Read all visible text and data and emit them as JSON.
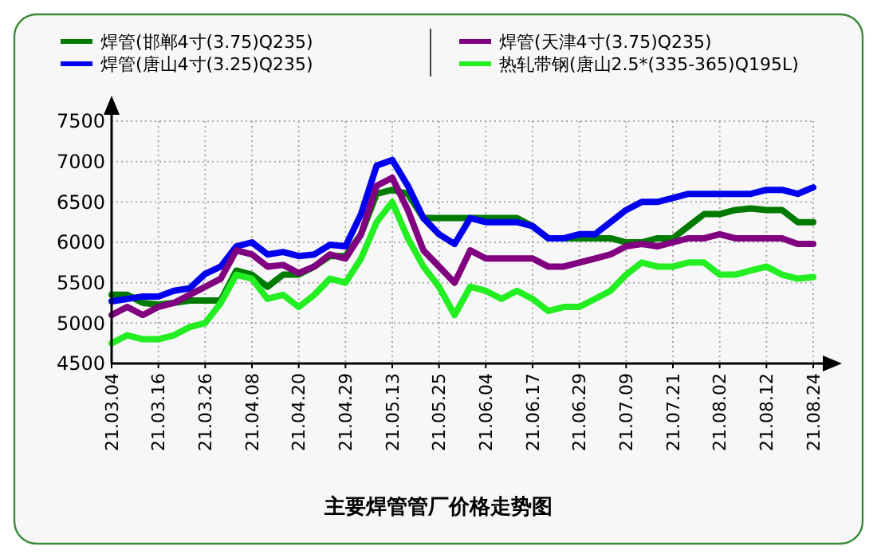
{
  "chart_data": {
    "type": "line",
    "title": "主要焊管管厂价格走势图",
    "categories": [
      "21.03.04",
      null,
      null,
      "21.03.16",
      null,
      null,
      "21.03.26",
      null,
      null,
      "21.04.08",
      null,
      null,
      "21.04.20",
      null,
      null,
      "21.04.29",
      null,
      null,
      "21.05.13",
      null,
      null,
      "21.05.25",
      null,
      null,
      "21.06.04",
      null,
      null,
      "21.06.17",
      null,
      null,
      "21.06.29",
      null,
      null,
      "21.07.09",
      null,
      null,
      "21.07.21",
      null,
      null,
      "21.08.02",
      null,
      null,
      "21.08.12",
      null,
      null,
      "21.08.24"
    ],
    "series": [
      {
        "name": "焊管(邯郸4寸(3.75)Q235)",
        "color": "#007a00",
        "values": [
          5350,
          5350,
          5250,
          5230,
          5250,
          5280,
          5280,
          5280,
          5650,
          5600,
          5450,
          5600,
          5600,
          5700,
          5830,
          5830,
          6100,
          6600,
          6650,
          6600,
          6300,
          6300,
          6300,
          6300,
          6300,
          6300,
          6300,
          6200,
          6050,
          6050,
          6050,
          6050,
          6050,
          6000,
          6000,
          6050,
          6050,
          6200,
          6350,
          6350,
          6400,
          6420,
          6400,
          6400,
          6250,
          6250
        ]
      },
      {
        "name": "焊管(唐山4寸(3.25)Q235)",
        "color": "#0000ee",
        "values": [
          5270,
          5300,
          5330,
          5330,
          5400,
          5430,
          5610,
          5700,
          5950,
          6000,
          5850,
          5880,
          5830,
          5850,
          5970,
          5950,
          6350,
          6950,
          7020,
          6700,
          6300,
          6100,
          5980,
          6300,
          6250,
          6250,
          6250,
          6200,
          6050,
          6050,
          6100,
          6100,
          6250,
          6400,
          6500,
          6500,
          6550,
          6600,
          6600,
          6600,
          6600,
          6600,
          6650,
          6650,
          6600,
          6680
        ]
      },
      {
        "name": "焊管(天津4寸(3.75)Q235)",
        "color": "#800080",
        "values": [
          5100,
          5200,
          5100,
          5200,
          5250,
          5350,
          5450,
          5550,
          5900,
          5850,
          5700,
          5720,
          5620,
          5700,
          5850,
          5800,
          6100,
          6700,
          6800,
          6400,
          5900,
          5700,
          5500,
          5900,
          5800,
          5800,
          5800,
          5800,
          5700,
          5700,
          5750,
          5800,
          5850,
          5950,
          5980,
          5950,
          6000,
          6050,
          6050,
          6100,
          6050,
          6050,
          6050,
          6050,
          5980,
          5980
        ]
      },
      {
        "name": "热轧带钢(唐山2.5*(335-365)Q195L)",
        "color": "#22ee22",
        "values": [
          4750,
          4850,
          4800,
          4800,
          4850,
          4950,
          5000,
          5250,
          5600,
          5550,
          5300,
          5350,
          5200,
          5350,
          5550,
          5500,
          5800,
          6250,
          6500,
          6050,
          5700,
          5450,
          5100,
          5450,
          5400,
          5300,
          5400,
          5300,
          5150,
          5200,
          5200,
          5300,
          5400,
          5600,
          5750,
          5700,
          5700,
          5750,
          5750,
          5600,
          5600,
          5650,
          5700,
          5600,
          5550,
          5570
        ]
      }
    ],
    "ylim": [
      4500,
      7500
    ],
    "yticks": [
      4500,
      5000,
      5500,
      6000,
      6500,
      7000,
      7500
    ],
    "grid": true,
    "legend": "top",
    "line_style": "solid",
    "marker": "none"
  }
}
